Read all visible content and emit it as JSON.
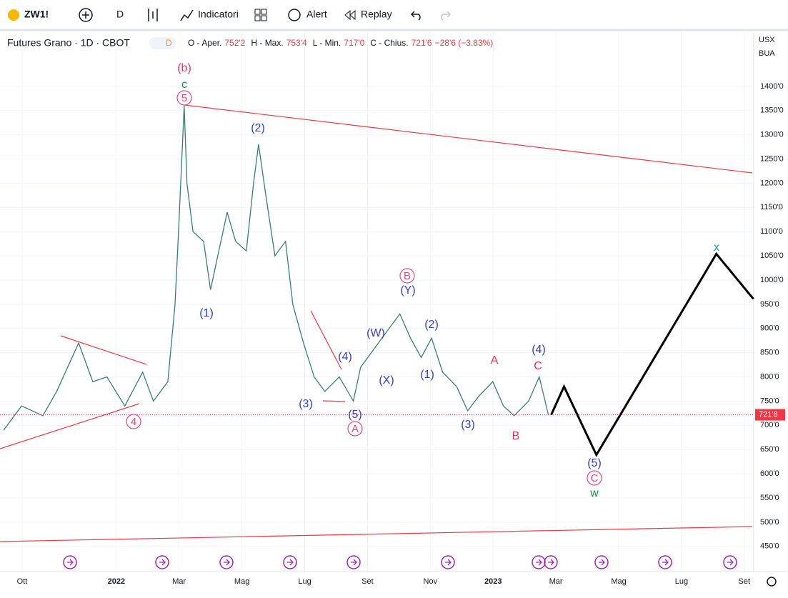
{
  "toolbar": {
    "symbol": "ZW1!",
    "interval": "D",
    "indicators": "Indicatori",
    "alert": "Alert",
    "replay": "Replay"
  },
  "legend": {
    "title": "Futures Grano · 1D · CBOT",
    "badge": "D",
    "open_label": "O - Aper.",
    "open": "752'2",
    "high_label": "H - Max.",
    "high": "753'4",
    "low_label": "L - Min.",
    "low": "717'0",
    "close_label": "C - Chius.",
    "close": "721'6",
    "change": "−28'6 (−3.83%)"
  },
  "price_axis": {
    "currency": "USX",
    "unit": "BUA"
  },
  "chart_data": {
    "type": "line",
    "grid": true,
    "xlim": [
      -0.705,
      23.3
    ],
    "ylim": [
      398,
      1512
    ],
    "xticks": [
      {
        "value": 0,
        "label": "Ott"
      },
      {
        "value": 3,
        "label": "2022"
      },
      {
        "value": 5,
        "label": "Mar"
      },
      {
        "value": 7,
        "label": "Mag"
      },
      {
        "value": 9,
        "label": "Lug"
      },
      {
        "value": 11,
        "label": "Set"
      },
      {
        "value": 13,
        "label": "Nov"
      },
      {
        "value": 15,
        "label": "2023"
      },
      {
        "value": 17,
        "label": "Mar"
      },
      {
        "value": 19,
        "label": "Mag"
      },
      {
        "value": 21,
        "label": "Lug"
      },
      {
        "value": 23,
        "label": "Set"
      }
    ],
    "yticks": [
      {
        "value": 450,
        "label": "450'0"
      },
      {
        "value": 500,
        "label": "500'0"
      },
      {
        "value": 550,
        "label": "550'0"
      },
      {
        "value": 600,
        "label": "600'0"
      },
      {
        "value": 650,
        "label": "650'0"
      },
      {
        "value": 700,
        "label": "700'0"
      },
      {
        "value": 750,
        "label": "750'0"
      },
      {
        "value": 800,
        "label": "800'0"
      },
      {
        "value": 850,
        "label": "850'0"
      },
      {
        "value": 900,
        "label": "900'0"
      },
      {
        "value": 950,
        "label": "950'0"
      },
      {
        "value": 1000,
        "label": "1000'0"
      },
      {
        "value": 1050,
        "label": "1050'0"
      },
      {
        "value": 1100,
        "label": "1100'0"
      },
      {
        "value": 1150,
        "label": "1150'0"
      },
      {
        "value": 1200,
        "label": "1200'0"
      },
      {
        "value": 1250,
        "label": "1250'0"
      },
      {
        "value": 1300,
        "label": "1300'0"
      },
      {
        "value": 1350,
        "label": "1350'0"
      },
      {
        "value": 1400,
        "label": "1400'0"
      }
    ],
    "last_price": {
      "value": 721.75,
      "label": "721'6"
    },
    "series": [
      {
        "color": "#3a7d6e",
        "x": [
          -0.59,
          -0.02,
          0.66,
          1.1,
          1.8,
          2.25,
          2.7,
          3.27,
          3.84,
          4.18,
          4.64,
          4.87,
          4.98,
          5.16,
          5.25,
          5.44,
          5.78,
          6.0,
          6.23,
          6.53,
          6.8,
          7.14,
          7.37,
          7.53,
          7.75,
          8.05,
          8.39,
          8.62,
          8.96,
          9.3,
          9.64,
          10.1,
          10.55,
          10.78,
          11.12,
          11.46,
          12.03,
          12.37,
          12.71,
          13.04,
          13.39,
          13.84,
          14.19,
          14.54,
          14.99,
          15.33,
          15.67,
          16.13,
          16.47,
          16.76
        ],
        "values": [
          690,
          740,
          720,
          770,
          870,
          790,
          800,
          740,
          810,
          750,
          790,
          950,
          1100,
          1360,
          1200,
          1100,
          1080,
          980,
          1050,
          1140,
          1080,
          1060,
          1200,
          1280,
          1180,
          1050,
          1080,
          950,
          870,
          800,
          770,
          800,
          750,
          820,
          850,
          880,
          930,
          880,
          840,
          880,
          810,
          780,
          730,
          760,
          790,
          740,
          720,
          750,
          800,
          721.75
        ]
      },
      {
        "color": "#000000",
        "x": [
          16.85,
          17.26,
          18.29,
          22.11,
          23.29
        ],
        "values": [
          721.75,
          780,
          639,
          1054,
          961
        ]
      }
    ],
    "annotations": [
      {
        "text": "(b)",
        "color": "#e0365a",
        "circled": false
      },
      {
        "text": "c",
        "color": "#1e8c3c",
        "circled": false
      },
      {
        "text": "5",
        "color": "#e04a7a",
        "circled": true
      },
      {
        "text": "(2)",
        "color": "#2f3fbf",
        "circled": false
      },
      {
        "text": "(1)",
        "color": "#2f3fbf",
        "circled": false
      },
      {
        "text": "4",
        "color": "#e04a7a",
        "circled": true
      },
      {
        "text": "(3)",
        "color": "#2f3fbf",
        "circled": false
      },
      {
        "text": "(4)",
        "color": "#2f3fbf",
        "circled": false
      },
      {
        "text": "(5)",
        "color": "#2f3fbf",
        "circled": false
      },
      {
        "text": "A",
        "color": "#e04a7a",
        "circled": true
      },
      {
        "text": "(W)",
        "color": "#2f3fbf",
        "circled": false
      },
      {
        "text": "(X)",
        "color": "#2f3fbf",
        "circled": false
      },
      {
        "text": "B",
        "color": "#e04a7a",
        "circled": true
      },
      {
        "text": "(Y)",
        "color": "#2f3fbf",
        "circled": false
      },
      {
        "text": "(2)",
        "color": "#2f3fbf",
        "circled": false
      },
      {
        "text": "(1)",
        "color": "#2f3fbf",
        "circled": false
      },
      {
        "text": "(3)",
        "color": "#2f3fbf",
        "circled": false
      },
      {
        "text": "A",
        "color": "#e0365a",
        "circled": false
      },
      {
        "text": "B",
        "color": "#e0365a",
        "circled": false
      },
      {
        "text": "(4)",
        "color": "#2f3fbf",
        "circled": false
      },
      {
        "text": "C",
        "color": "#e0365a",
        "circled": false
      },
      {
        "text": "x",
        "color": "#1a9a8a",
        "circled": false
      },
      {
        "text": "(5)",
        "color": "#2f3fbf",
        "circled": false
      },
      {
        "text": "C",
        "color": "#e04a7a",
        "circled": true
      },
      {
        "text": "w",
        "color": "#1e8c3c",
        "circled": false
      }
    ]
  }
}
